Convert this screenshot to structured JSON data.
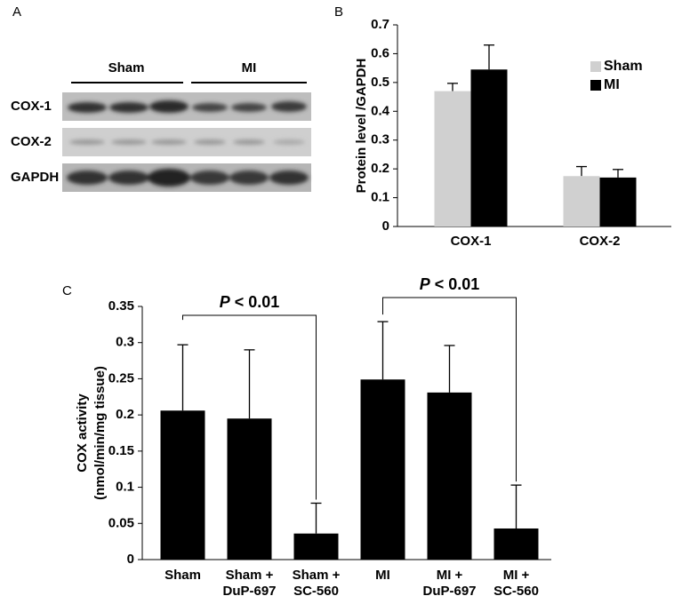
{
  "panel_labels": [
    "A",
    "B",
    "C"
  ],
  "blot": {
    "groups": [
      "Sham",
      "MI"
    ],
    "rows": [
      "COX-1",
      "COX-2",
      "GAPDH"
    ]
  },
  "chart_data": [
    {
      "type": "bar",
      "ylabel": "Protein level /GAPDH",
      "categories": [
        "COX-1",
        "COX-2"
      ],
      "series": [
        {
          "name": "Sham",
          "color": "#d0d0d0",
          "values": [
            0.47,
            0.175
          ],
          "errors": [
            0.027,
            0.033
          ]
        },
        {
          "name": "MI",
          "color": "#000000",
          "values": [
            0.545,
            0.17
          ],
          "errors": [
            0.085,
            0.028
          ]
        }
      ],
      "ylim": [
        0,
        0.7
      ],
      "yticks": [
        0,
        0.1,
        0.2,
        0.3,
        0.4,
        0.5,
        0.6,
        0.7
      ],
      "legend": "upper right"
    },
    {
      "type": "bar",
      "ylabel": [
        "COX activity",
        "(nmol/min/mg tissue)"
      ],
      "categories": [
        "Sham",
        "Sham +\nDuP-697",
        "Sham +\nSC-560",
        "MI",
        "MI +\nDuP-697",
        "MI +\nSC-560"
      ],
      "values": [
        0.206,
        0.195,
        0.036,
        0.249,
        0.231,
        0.043
      ],
      "errors": [
        0.091,
        0.095,
        0.042,
        0.08,
        0.065,
        0.06
      ],
      "color": "#000000",
      "ylim": [
        0,
        0.35
      ],
      "yticks": [
        0,
        0.05,
        0.1,
        0.15,
        0.2,
        0.25,
        0.3,
        0.35
      ],
      "annotations": [
        {
          "italic": "P",
          "text": "< 0.01"
        },
        {
          "italic": "P",
          "text": "< 0.01"
        }
      ]
    }
  ]
}
